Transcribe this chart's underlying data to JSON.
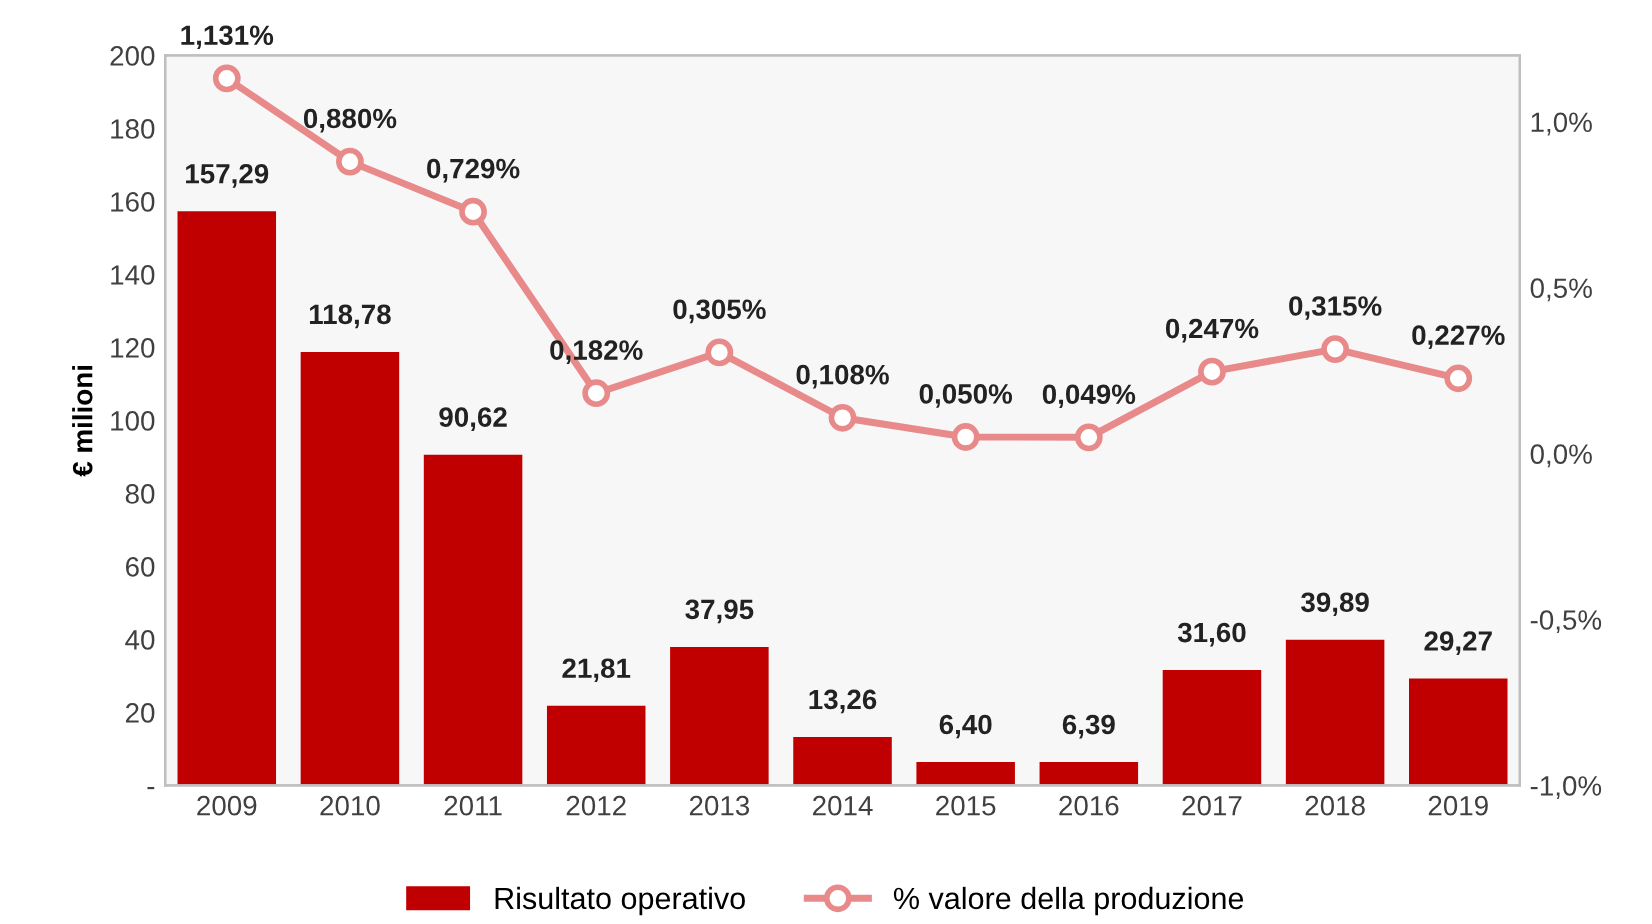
{
  "chart_data": {
    "type": "bar",
    "ylabel": "€ milioni",
    "categories": [
      "2009",
      "2010",
      "2011",
      "2012",
      "2013",
      "2014",
      "2015",
      "2016",
      "2017",
      "2018",
      "2019"
    ],
    "series": [
      {
        "name": "Risultato operativo",
        "color": "#c00000",
        "values": [
          157.29,
          118.78,
          90.62,
          21.81,
          37.95,
          13.26,
          6.4,
          6.39,
          31.6,
          39.89,
          29.27
        ],
        "value_labels": [
          "157,29",
          "118,78",
          "90,62",
          "21,81",
          "37,95",
          "13,26",
          "6,40",
          "6,39",
          "31,60",
          "39,89",
          "29,27"
        ]
      },
      {
        "name": "% valore della produzione",
        "type": "line",
        "axis": "y2",
        "color": "#e8898a",
        "marker": "circle",
        "values": [
          1.131,
          0.88,
          0.729,
          0.182,
          0.305,
          0.108,
          0.05,
          0.049,
          0.247,
          0.315,
          0.227
        ],
        "value_labels": [
          "1,131%",
          "0,880%",
          "0,729%",
          "0,182%",
          "0,305%",
          "0,108%",
          "0,050%",
          "0,049%",
          "0,247%",
          "0,315%",
          "0,227%"
        ]
      }
    ],
    "ylim": [
      0,
      200
    ],
    "yticks": [
      {
        "value": 0,
        "label": "-"
      },
      20,
      40,
      60,
      80,
      100,
      120,
      140,
      160,
      180,
      200
    ],
    "y2lim": [
      -1.0,
      1.2
    ],
    "y2ticks": [
      {
        "value": -1.0,
        "label": "-1,0%"
      },
      {
        "value": -0.5,
        "label": "-0,5%"
      },
      {
        "value": 0.0,
        "label": "0,0%"
      },
      {
        "value": 0.5,
        "label": "0,5%"
      },
      {
        "value": 1.0,
        "label": "1,0%"
      }
    ],
    "legend": "bottom",
    "grid": false
  }
}
